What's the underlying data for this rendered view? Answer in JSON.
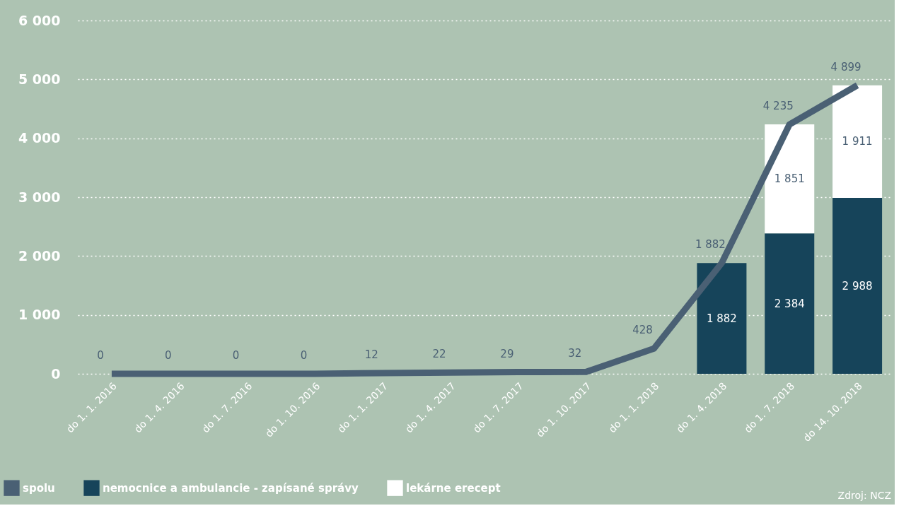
{
  "chart_data": {
    "type": "bar",
    "stacked": true,
    "categories": [
      "do 1. 1. 2016",
      "do 1. 4. 2016",
      "do 1. 7. 2016",
      "do 1. 10. 2016",
      "do 1. 1. 2017",
      "do 1. 4. 2017",
      "do 1. 7. 2017",
      "do 1. 10. 2017",
      "do 1. 1. 2018",
      "do 1. 4. 2018",
      "do 1. 7. 2018",
      "do 14. 10. 2018"
    ],
    "series": [
      {
        "name": "spolu",
        "type": "line",
        "color": "#4a6074",
        "values": [
          0,
          0,
          0,
          0,
          12,
          22,
          29,
          32,
          428,
          1882,
          4235,
          4899
        ],
        "value_labels": [
          "0",
          "0",
          "0",
          "0",
          "12",
          "22",
          "29",
          "32",
          "428",
          "1 882",
          "4 235",
          "4 899"
        ]
      },
      {
        "name": "nemocnice a ambulancie - zapísané správy",
        "color": "#16445a",
        "values": [
          null,
          null,
          null,
          null,
          null,
          null,
          null,
          null,
          null,
          1882,
          2384,
          2988
        ],
        "value_labels": [
          null,
          null,
          null,
          null,
          null,
          null,
          null,
          null,
          null,
          "1 882",
          "2 384",
          "2 988"
        ]
      },
      {
        "name": "lekárne erecept",
        "color": "#ffffff",
        "values": [
          null,
          null,
          null,
          null,
          null,
          null,
          null,
          null,
          null,
          null,
          1851,
          1911
        ],
        "value_labels": [
          null,
          null,
          null,
          null,
          null,
          null,
          null,
          null,
          null,
          null,
          "1 851",
          "1 911"
        ]
      }
    ],
    "ylim": [
      0,
      6000
    ],
    "yticks": [
      {
        "value": 0,
        "label": "0"
      },
      {
        "value": 1000,
        "label": "1 000"
      },
      {
        "value": 2000,
        "label": "2 000"
      },
      {
        "value": 3000,
        "label": "3 000"
      },
      {
        "value": 4000,
        "label": "4 000"
      },
      {
        "value": 5000,
        "label": "5 000"
      },
      {
        "value": 6000,
        "label": "6 000"
      }
    ],
    "grid": "y",
    "legend": "bottom left",
    "line_style": "solid",
    "marker": "none",
    "annotations": [
      "Zdroj: NCZ"
    ]
  }
}
